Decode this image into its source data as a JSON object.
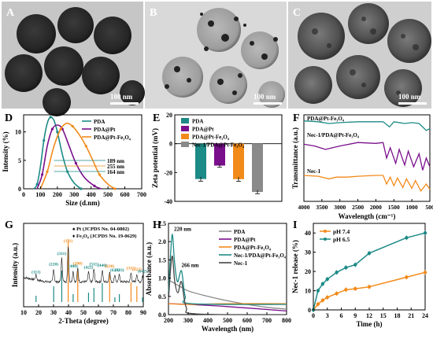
{
  "colors": {
    "teal": "#1c8a86",
    "purple": "#7a0f8c",
    "orange": "#f28a1a",
    "gray": "#8a8a8a"
  },
  "panels": {
    "A": {
      "label": "A",
      "scale": "100 nm"
    },
    "B": {
      "label": "B",
      "scale": "100 nm"
    },
    "C": {
      "label": "C",
      "scale": "100 nm"
    },
    "D": {
      "label": "D"
    },
    "E": {
      "label": "E"
    },
    "F": {
      "label": "F"
    },
    "G": {
      "label": "G"
    },
    "H": {
      "label": "H"
    },
    "I": {
      "label": "I"
    }
  },
  "chart_data": [
    {
      "id": "D",
      "type": "line",
      "xlabel": "Size (d.nm)",
      "ylabel": "Intensity (%)",
      "xlim": [
        0,
        700
      ],
      "ylim": [
        0,
        13
      ],
      "xticks": [
        "0",
        "100",
        "200",
        "300",
        "400",
        "500",
        "600",
        "700"
      ],
      "yticks": [
        "0",
        "5",
        "10"
      ],
      "annotations": [
        "189 nm",
        "255 nm",
        "164 nm"
      ],
      "series": [
        {
          "name": "PDA",
          "color": "#1c8a86",
          "points": [
            [
              60,
              0
            ],
            [
              80,
              0.8
            ],
            [
              100,
              4
            ],
            [
              120,
              8.5
            ],
            [
              140,
              11.5
            ],
            [
              160,
              12.6
            ],
            [
              180,
              12
            ],
            [
              200,
              10
            ],
            [
              230,
              6
            ],
            [
              260,
              3
            ],
            [
              300,
              1
            ],
            [
              340,
              0
            ]
          ]
        },
        {
          "name": "PDA@Pt",
          "color": "#7a0f8c",
          "points": [
            [
              80,
              0
            ],
            [
              110,
              2.5
            ],
            [
              140,
              7.5
            ],
            [
              170,
              10.5
            ],
            [
              200,
              11.2
            ],
            [
              230,
              10.5
            ],
            [
              270,
              7.5
            ],
            [
              310,
              4.5
            ],
            [
              360,
              2
            ],
            [
              420,
              0.5
            ],
            [
              460,
              0
            ]
          ]
        },
        {
          "name": "PDA@Pt-Fe3O4",
          "color": "#f28a1a",
          "points": [
            [
              100,
              0
            ],
            [
              140,
              3
            ],
            [
              180,
              7.5
            ],
            [
              220,
              10.5
            ],
            [
              255,
              11.5
            ],
            [
              290,
              11
            ],
            [
              330,
              9.5
            ],
            [
              370,
              7.5
            ],
            [
              410,
              5
            ],
            [
              450,
              2.5
            ],
            [
              500,
              0.8
            ],
            [
              540,
              0
            ]
          ]
        }
      ]
    },
    {
      "id": "E",
      "type": "bar",
      "ylabel": "Zeta potential (mV)",
      "ylim": [
        -40,
        20
      ],
      "yticks": [
        "20",
        "0",
        "-20",
        "-40"
      ],
      "categories": [
        "PDA",
        "PDA@Pt",
        "PDA@Pt-Fe3O4",
        "Nec-1/PDA@Pt-Fe3O4"
      ],
      "values": [
        -24.5,
        -15.2,
        -24.6,
        -33.5
      ],
      "errors": [
        1.5,
        1.2,
        1.5,
        1.2
      ]
    },
    {
      "id": "F",
      "type": "line",
      "xlabel": "Wavelength (cm⁻¹)",
      "ylabel": "Transmittance (a.u.)",
      "xlim": [
        4000,
        500
      ],
      "xticks": [
        "4000",
        "3500",
        "3000",
        "2500",
        "2000",
        "1500",
        "1000",
        "500"
      ],
      "series": [
        {
          "name": "PDA@Pt-Fe3O4",
          "color": "#1c8a86",
          "points": [
            [
              4000,
              0.93
            ],
            [
              3600,
              0.92
            ],
            [
              3300,
              0.9
            ],
            [
              3000,
              0.91
            ],
            [
              2500,
              0.92
            ],
            [
              1800,
              0.92
            ],
            [
              1620,
              0.86
            ],
            [
              1500,
              0.92
            ],
            [
              1200,
              0.9
            ],
            [
              1000,
              0.91
            ],
            [
              800,
              0.9
            ],
            [
              600,
              0.82
            ],
            [
              500,
              0.84
            ]
          ]
        },
        {
          "name": "Nec-1/PDA@Pt-Fe3O4",
          "color": "#7a0f8c",
          "points": [
            [
              4000,
              0.66
            ],
            [
              3700,
              0.64
            ],
            [
              3400,
              0.6
            ],
            [
              3200,
              0.62
            ],
            [
              3000,
              0.64
            ],
            [
              2500,
              0.68
            ],
            [
              2000,
              0.67
            ],
            [
              1800,
              0.68
            ],
            [
              1700,
              0.5
            ],
            [
              1600,
              0.62
            ],
            [
              1450,
              0.44
            ],
            [
              1350,
              0.6
            ],
            [
              1200,
              0.42
            ],
            [
              1100,
              0.58
            ],
            [
              950,
              0.4
            ],
            [
              800,
              0.55
            ],
            [
              700,
              0.36
            ],
            [
              600,
              0.5
            ],
            [
              500,
              0.4
            ]
          ]
        },
        {
          "name": "Nec-1",
          "color": "#f28a1a",
          "points": [
            [
              4000,
              0.3
            ],
            [
              3600,
              0.29
            ],
            [
              3300,
              0.26
            ],
            [
              3100,
              0.28
            ],
            [
              2800,
              0.28
            ],
            [
              2500,
              0.29
            ],
            [
              2000,
              0.3
            ],
            [
              1800,
              0.3
            ],
            [
              1700,
              0.2
            ],
            [
              1600,
              0.28
            ],
            [
              1500,
              0.18
            ],
            [
              1400,
              0.27
            ],
            [
              1250,
              0.16
            ],
            [
              1150,
              0.26
            ],
            [
              1000,
              0.15
            ],
            [
              900,
              0.24
            ],
            [
              750,
              0.12
            ],
            [
              600,
              0.2
            ],
            [
              500,
              0.14
            ]
          ]
        }
      ]
    },
    {
      "id": "G",
      "type": "line",
      "xlabel": "2-Theta (degree)",
      "ylabel": "Intensity (a.u.)",
      "xlim": [
        10,
        90
      ],
      "xticks": [
        "10",
        "20",
        "30",
        "40",
        "50",
        "60",
        "70",
        "80",
        "90"
      ],
      "legend": [
        "Pt (JCPDS No. 04-0802)",
        "Fe3O4 (JCPDS No. 19-0629)"
      ],
      "peaks": [
        {
          "x": 18.3,
          "label": "(111)"
        },
        {
          "x": 30.1,
          "label": "(220)"
        },
        {
          "x": 35.5,
          "label": "(311)"
        },
        {
          "x": 39.8,
          "label": "(111)"
        },
        {
          "x": 43.1,
          "label": "(400)"
        },
        {
          "x": 46.2,
          "label": "(200)"
        },
        {
          "x": 53.4,
          "label": "(422)"
        },
        {
          "x": 57.0,
          "label": "(511)"
        },
        {
          "x": 62.6,
          "label": "(440)"
        },
        {
          "x": 67.5,
          "label": "(220)"
        },
        {
          "x": 71.0,
          "label": "(620)"
        },
        {
          "x": 74.0,
          "label": "(533)"
        },
        {
          "x": 81.8,
          "label": "(311)"
        },
        {
          "x": 85.7,
          "label": "(222)"
        },
        {
          "x": 89.5,
          "label": "(642)"
        }
      ],
      "reference_orange": [
        39.8,
        46.2,
        67.5,
        81.8,
        85.7
      ],
      "reference_teal": [
        18.3,
        30.1,
        35.5,
        43.1,
        53.4,
        57.0,
        62.6,
        71.0,
        74.0,
        89.5
      ]
    },
    {
      "id": "H",
      "type": "line",
      "xlabel": "Wavelength (nm)",
      "ylabel": "Absorbance (a.u.)",
      "xlim": [
        200,
        800
      ],
      "ylim": [
        0,
        2.5
      ],
      "xticks": [
        "200",
        "300",
        "400",
        "500",
        "600",
        "700",
        "800"
      ],
      "yticks": [
        "0.0",
        "0.5",
        "1.0",
        "1.5",
        "2.0",
        "2.5"
      ],
      "annotations": [
        "220 nm",
        "266 nm"
      ],
      "series": [
        {
          "name": "PDA",
          "color": "#8a8a8a",
          "points": [
            [
              200,
              0.95
            ],
            [
              250,
              0.8
            ],
            [
              300,
              0.65
            ],
            [
              400,
              0.5
            ],
            [
              500,
              0.38
            ],
            [
              600,
              0.28
            ],
            [
              700,
              0.2
            ],
            [
              800,
              0.15
            ]
          ]
        },
        {
          "name": "PDA@Pt",
          "color": "#7a0f8c",
          "points": [
            [
              200,
              0.3
            ],
            [
              300,
              0.28
            ],
            [
              500,
              0.22
            ],
            [
              800,
              0.1
            ]
          ]
        },
        {
          "name": "PDA@Pt-Fe3O4",
          "color": "#f28a1a",
          "points": [
            [
              200,
              0.3
            ],
            [
              300,
              0.28
            ],
            [
              500,
              0.3
            ],
            [
              800,
              0.3
            ]
          ]
        },
        {
          "name": "Nec-1/PDA@Pt-Fe3O4",
          "color": "#1c8a86",
          "points": [
            [
              200,
              0.6
            ],
            [
              210,
              1.6
            ],
            [
              220,
              2.2
            ],
            [
              230,
              1.5
            ],
            [
              245,
              0.9
            ],
            [
              266,
              1.2
            ],
            [
              285,
              0.5
            ],
            [
              320,
              0.3
            ],
            [
              800,
              0.28
            ]
          ]
        },
        {
          "name": "Nec-1",
          "color": "#444444",
          "points": [
            [
              200,
              0.4
            ],
            [
              210,
              1.2
            ],
            [
              220,
              1.6
            ],
            [
              232,
              0.9
            ],
            [
              248,
              0.6
            ],
            [
              266,
              0.9
            ],
            [
              290,
              0.2
            ],
            [
              340,
              0.02
            ],
            [
              800,
              0.0
            ]
          ]
        }
      ]
    },
    {
      "id": "I",
      "type": "line",
      "xlabel": "Time (h)",
      "ylabel": "Nec-1 release (%)",
      "xlim": [
        0,
        24
      ],
      "ylim": [
        0,
        45
      ],
      "xticks": [
        "0",
        "3",
        "6",
        "9",
        "12",
        "15",
        "18",
        "21",
        "24"
      ],
      "yticks": [
        "0",
        "10",
        "20",
        "30",
        "40"
      ],
      "series": [
        {
          "name": "pH 7.4",
          "color": "#f28a1a",
          "points": [
            [
              0,
              0
            ],
            [
              1,
              3
            ],
            [
              2,
              5
            ],
            [
              3,
              6.5
            ],
            [
              5,
              8.5
            ],
            [
              7,
              10.5
            ],
            [
              9,
              11
            ],
            [
              12,
              12
            ],
            [
              20,
              17
            ],
            [
              24,
              19.5
            ]
          ]
        },
        {
          "name": "pH 6.5",
          "color": "#1c8a86",
          "points": [
            [
              0,
              0
            ],
            [
              1,
              10
            ],
            [
              2,
              13.5
            ],
            [
              3,
              16
            ],
            [
              5,
              19.5
            ],
            [
              7,
              22
            ],
            [
              9,
              23.5
            ],
            [
              12,
              29.5
            ],
            [
              20,
              37.5
            ],
            [
              24,
              40
            ]
          ]
        }
      ]
    }
  ]
}
